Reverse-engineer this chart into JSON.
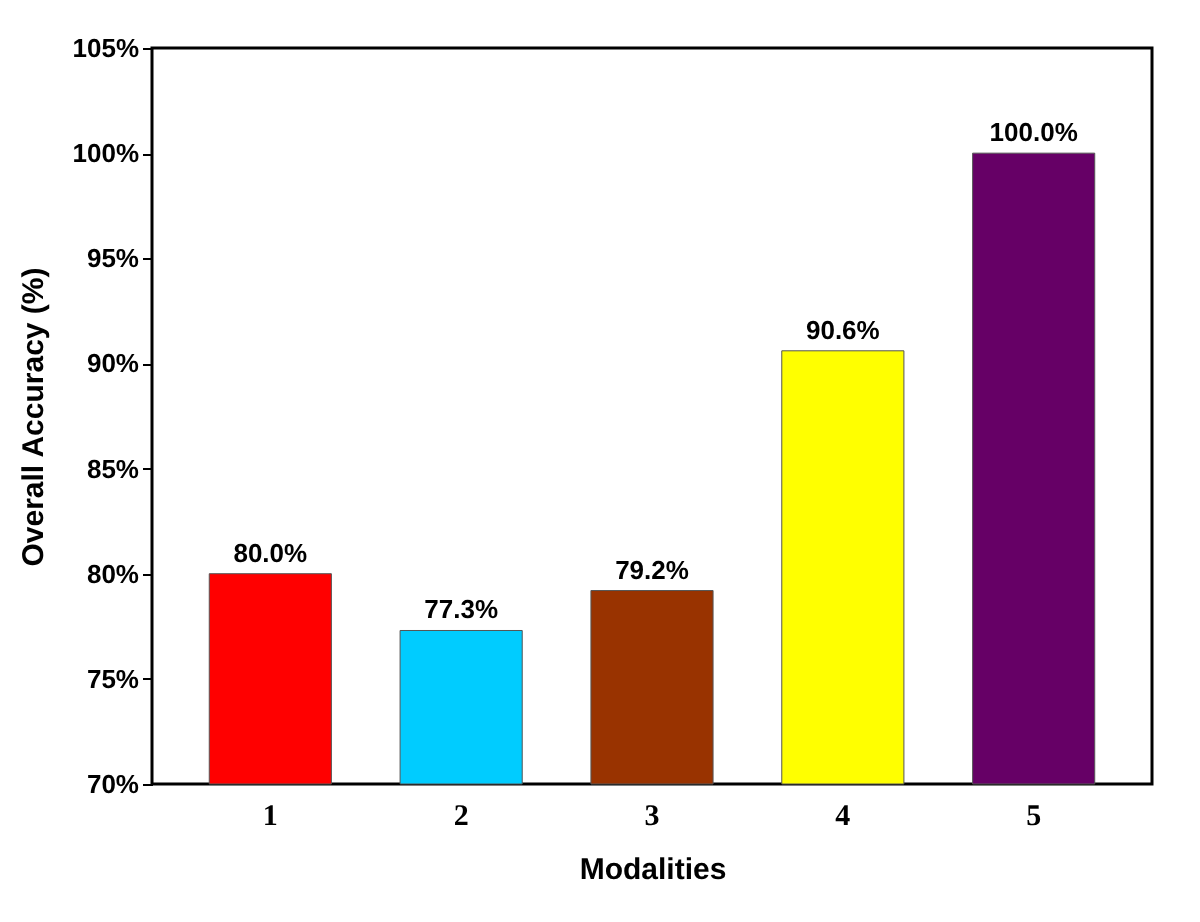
{
  "chart_data": {
    "type": "bar",
    "categories": [
      "1",
      "2",
      "3",
      "4",
      "5"
    ],
    "values": [
      80.0,
      77.3,
      79.2,
      90.6,
      100.0
    ],
    "colors": [
      "#ff0000",
      "#00ccff",
      "#993300",
      "#ffff00",
      "#660066"
    ],
    "value_labels": [
      "80.0%",
      "77.3%",
      "79.2%",
      "90.6%",
      "100.0%"
    ],
    "xlabel": "Modalities",
    "ylabel": "Overall Accuracy (%)",
    "ylim": [
      70,
      105
    ],
    "yticks": [
      {
        "value": 70,
        "label": "70%"
      },
      {
        "value": 75,
        "label": "75%"
      },
      {
        "value": 80,
        "label": "80%"
      },
      {
        "value": 85,
        "label": "85%"
      },
      {
        "value": 90,
        "label": "90%"
      },
      {
        "value": 95,
        "label": "95%"
      },
      {
        "value": 100,
        "label": "100%"
      },
      {
        "value": 105,
        "label": "105%"
      }
    ],
    "grid": false
  }
}
